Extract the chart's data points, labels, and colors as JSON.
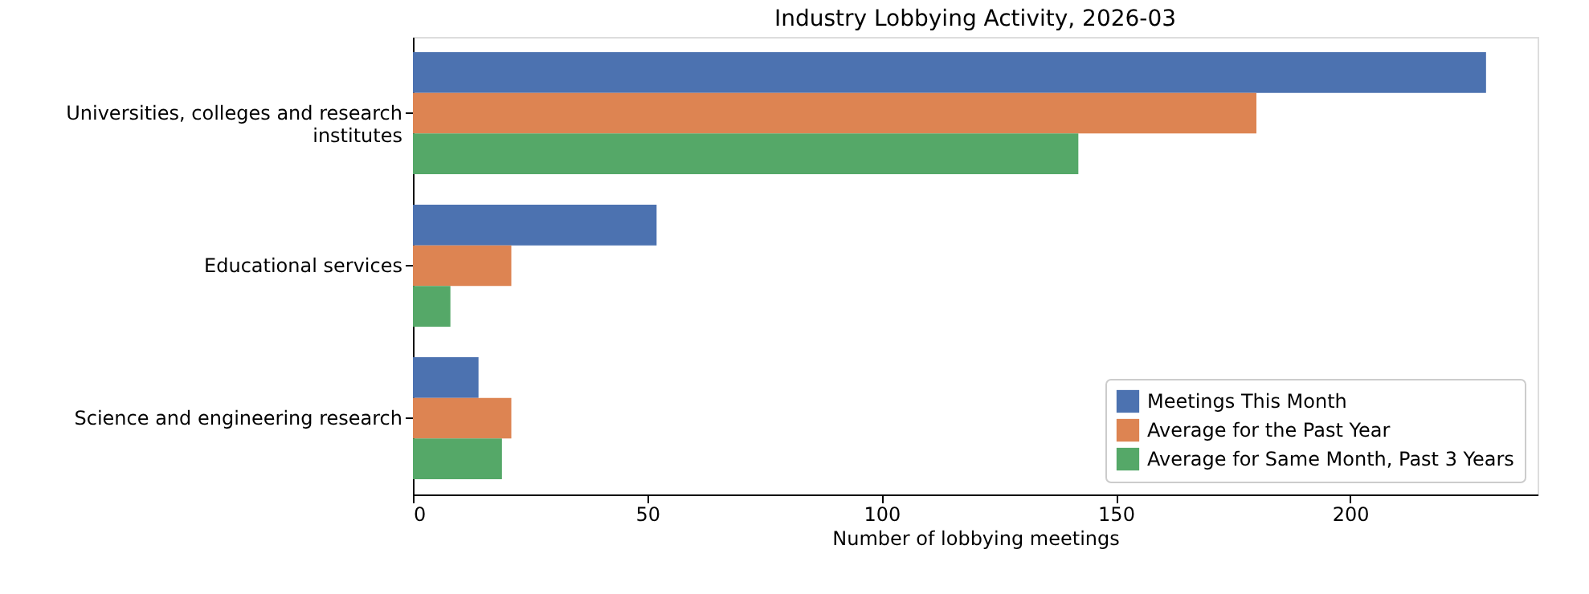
{
  "chart_data": {
    "type": "bar",
    "orientation": "horizontal",
    "title": "Industry Lobbying Activity, 2026-03",
    "xlabel": "Number of lobbying meetings",
    "categories": [
      "Universities, colleges and research institutes",
      "Educational services",
      "Science and engineering research"
    ],
    "series": [
      {
        "name": "Meetings This Month",
        "color": "#4c72b0",
        "values": [
          229,
          52,
          14
        ]
      },
      {
        "name": "Average for the Past Year",
        "color": "#dd8452",
        "values": [
          180,
          21,
          21
        ]
      },
      {
        "name": "Average for Same Month, Past 3 Years",
        "color": "#55a868",
        "values": [
          142,
          8,
          19
        ]
      }
    ],
    "xlim": [
      0,
      240
    ],
    "xticks": [
      0,
      50,
      100,
      150,
      200
    ],
    "legend": "bottom right",
    "grid": false
  }
}
